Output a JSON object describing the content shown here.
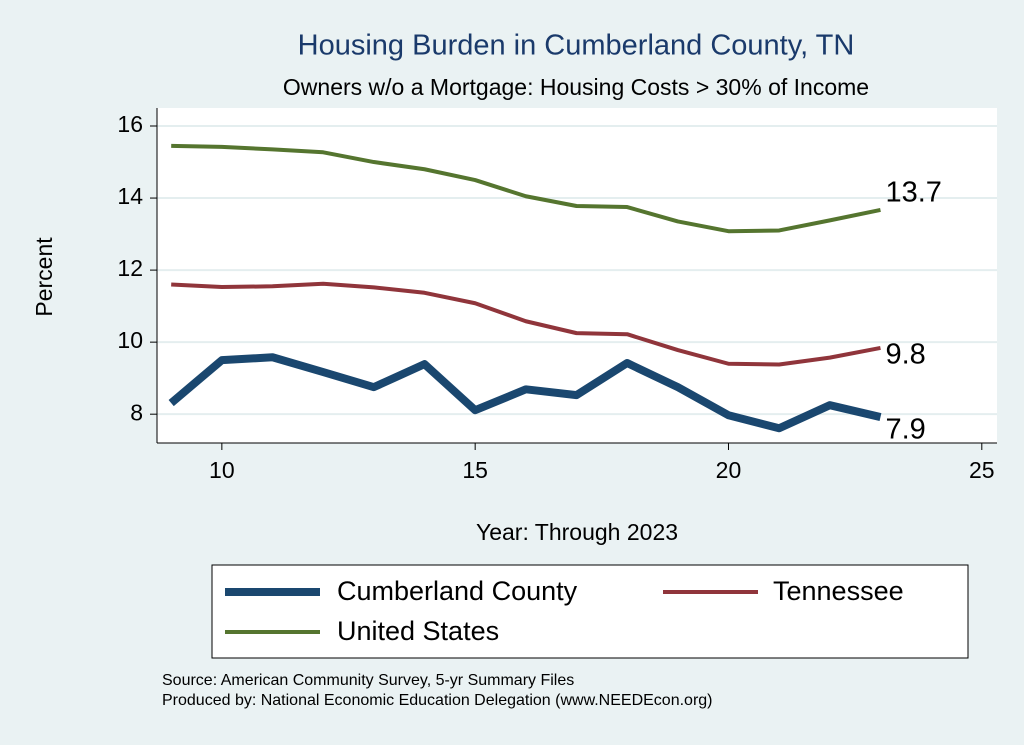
{
  "chart_data": {
    "type": "line",
    "title": "Housing Burden in Cumberland County, TN",
    "subtitle": "Owners w/o a Mortgage: Housing Costs > 30% of Income",
    "x_label": "Year: Through 2023",
    "y_label": "Percent",
    "x": [
      9,
      10,
      11,
      12,
      13,
      14,
      15,
      16,
      17,
      18,
      19,
      20,
      21,
      22,
      23
    ],
    "series": [
      {
        "name": "Cumberland County",
        "color": "#1a476f",
        "width": 8,
        "values": [
          8.31,
          9.5,
          9.58,
          9.17,
          8.75,
          9.39,
          8.11,
          8.69,
          8.53,
          9.42,
          8.75,
          7.97,
          7.61,
          8.25,
          7.92
        ],
        "value_labels": [
          null,
          null,
          null,
          null,
          null,
          null,
          null,
          null,
          null,
          null,
          null,
          null,
          null,
          null,
          "7.9"
        ]
      },
      {
        "name": "Tennessee",
        "color": "#90353b",
        "width": 4,
        "values": [
          11.6,
          11.53,
          11.55,
          11.62,
          11.52,
          11.37,
          11.08,
          10.58,
          10.25,
          10.22,
          9.78,
          9.4,
          9.38,
          9.57,
          9.84
        ],
        "value_labels": [
          null,
          null,
          null,
          null,
          null,
          null,
          null,
          null,
          null,
          null,
          null,
          null,
          null,
          null,
          "9.8"
        ]
      },
      {
        "name": "United States",
        "color": "#55752f",
        "width": 4,
        "values": [
          15.45,
          15.42,
          15.35,
          15.27,
          15.0,
          14.8,
          14.5,
          14.05,
          13.78,
          13.75,
          13.35,
          13.08,
          13.1,
          13.38,
          13.67
        ],
        "value_labels": [
          null,
          null,
          null,
          null,
          null,
          null,
          null,
          null,
          null,
          null,
          null,
          null,
          null,
          null,
          "13.7"
        ]
      }
    ],
    "xlim": [
      8.72,
      25.3
    ],
    "xticks": [
      10,
      15,
      20,
      25
    ],
    "ylim": [
      7.2,
      16.5
    ],
    "yticks": [
      8,
      10,
      12,
      14,
      16
    ],
    "grid": true,
    "notes": [
      "Source: American Community Survey, 5-yr Summary Files",
      "Produced by: National Economic Education Delegation (www.NEEDEcon.org)"
    ]
  }
}
